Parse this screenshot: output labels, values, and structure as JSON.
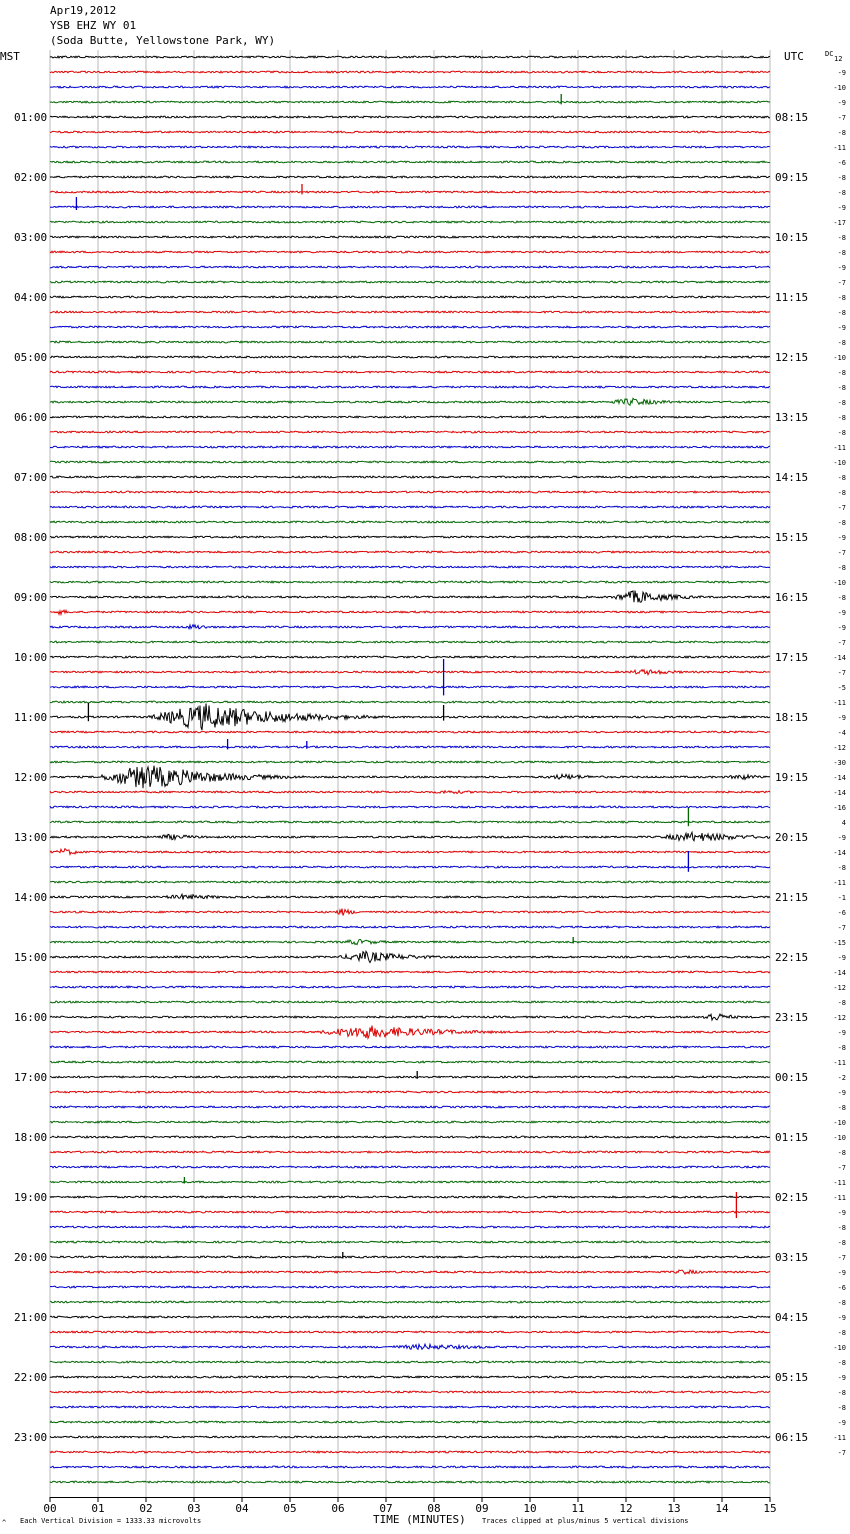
{
  "header": {
    "date": "Apr19,2012",
    "station": "YSB EHZ WY 01",
    "location": "(Soda Butte, Yellowstone Park, WY)"
  },
  "chart_data": {
    "type": "line",
    "left_tz": "MST",
    "right_tz": "UTC",
    "dc_label": "DC",
    "dc_first": "12",
    "xlabel": "TIME (MINUTES)",
    "xlim": [
      0,
      15
    ],
    "x_ticks": [
      "00",
      "01",
      "02",
      "03",
      "04",
      "05",
      "06",
      "07",
      "08",
      "09",
      "10",
      "11",
      "12",
      "13",
      "14",
      "15"
    ],
    "footer_left": "Each Vertical Division = 1333.33 microvolts",
    "footer_right": "Traces clipped at plus/minus 5 vertical divisions",
    "footer_mark": "^",
    "trace_colors": [
      "#000000",
      "#dd0000",
      "#0000cc",
      "#006600"
    ],
    "mst_labels": [
      "",
      "01:00",
      "02:00",
      "03:00",
      "04:00",
      "05:00",
      "06:00",
      "07:00",
      "08:00",
      "09:00",
      "10:00",
      "11:00",
      "12:00",
      "13:00",
      "14:00",
      "15:00",
      "16:00",
      "17:00",
      "18:00",
      "19:00",
      "20:00",
      "21:00",
      "22:00",
      "23:00"
    ],
    "utc_labels": [
      "",
      "08:15",
      "09:15",
      "10:15",
      "11:15",
      "12:15",
      "13:15",
      "14:15",
      "15:15",
      "16:15",
      "17:15",
      "18:15",
      "19:15",
      "20:15",
      "21:15",
      "22:15",
      "23:15",
      "00:15",
      "01:15",
      "02:15",
      "03:15",
      "04:15",
      "05:15",
      "06:15"
    ],
    "dc_offsets": [
      12,
      -9,
      -10,
      -9,
      -7,
      -8,
      -11,
      -6,
      -8,
      -8,
      -9,
      -17,
      -8,
      -8,
      -9,
      -7,
      -8,
      -8,
      -9,
      -8,
      -10,
      -8,
      -8,
      -8,
      -8,
      -8,
      -11,
      -10,
      -8,
      -8,
      -7,
      -8,
      -9,
      -7,
      -8,
      -10,
      -8,
      -9,
      -9,
      -7,
      -14,
      -7,
      -5,
      -11,
      -9,
      -4,
      -12,
      -30,
      -14,
      -14,
      -16,
      4,
      -9,
      -14,
      -8,
      -11,
      -1,
      -6,
      -7,
      -15,
      -9,
      -14,
      -12,
      -8,
      -12,
      -9,
      -8,
      -11,
      -2,
      -9,
      -8,
      -10,
      -10,
      -8,
      -7,
      -11,
      -11,
      -9,
      -8,
      -8,
      -7,
      -9,
      -6,
      -8,
      -9,
      -8,
      -10,
      -8,
      -9,
      -8,
      -8,
      -9,
      -11,
      -7
    ],
    "events": [
      {
        "trace": 3,
        "minute": 10.65,
        "amplitude": 8,
        "kind": "spike"
      },
      {
        "trace": 9,
        "minute": 5.25,
        "amplitude": 8,
        "kind": "spike"
      },
      {
        "trace": 10,
        "minute": 0.55,
        "amplitude": 10,
        "kind": "spike"
      },
      {
        "trace": 23,
        "minute": 12.1,
        "amplitude": 4,
        "kind": "burst",
        "width": 1.2
      },
      {
        "trace": 36,
        "minute": 12.2,
        "amplitude": 7,
        "kind": "burst",
        "width": 1.2
      },
      {
        "trace": 37,
        "minute": 0.2,
        "amplitude": 3,
        "kind": "burst",
        "width": 0.4
      },
      {
        "trace": 38,
        "minute": 3.0,
        "amplitude": 3,
        "kind": "burst",
        "width": 0.6
      },
      {
        "trace": 41,
        "minute": 12.4,
        "amplitude": 3,
        "kind": "burst",
        "width": 1.2
      },
      {
        "trace": 42,
        "minute": 8.2,
        "amplitude": 28,
        "kind": "spike"
      },
      {
        "trace": 44,
        "minute": 3.2,
        "amplitude": 14,
        "kind": "burst",
        "width": 2.5
      },
      {
        "trace": 44,
        "minute": 8.2,
        "amplitude": 12,
        "kind": "spike"
      },
      {
        "trace": 44,
        "minute": 0.8,
        "amplitude": 14,
        "kind": "spike"
      },
      {
        "trace": 46,
        "minute": 3.7,
        "amplitude": 8,
        "kind": "spike"
      },
      {
        "trace": 46,
        "minute": 5.35,
        "amplitude": 6,
        "kind": "spike"
      },
      {
        "trace": 48,
        "minute": 2.0,
        "amplitude": 13,
        "kind": "burst",
        "width": 2.2
      },
      {
        "trace": 48,
        "minute": 10.7,
        "amplitude": 3,
        "kind": "burst",
        "width": 1.2
      },
      {
        "trace": 48,
        "minute": 14.4,
        "amplitude": 3,
        "kind": "burst",
        "width": 0.8
      },
      {
        "trace": 49,
        "minute": 8.3,
        "amplitude": 2,
        "kind": "burst",
        "width": 1.2
      },
      {
        "trace": 51,
        "minute": 13.3,
        "amplitude": 14,
        "kind": "spike"
      },
      {
        "trace": 52,
        "minute": 2.5,
        "amplitude": 3,
        "kind": "burst",
        "width": 1.0
      },
      {
        "trace": 52,
        "minute": 13.4,
        "amplitude": 5,
        "kind": "burst",
        "width": 1.8
      },
      {
        "trace": 53,
        "minute": 0.3,
        "amplitude": 4,
        "kind": "burst",
        "width": 0.5
      },
      {
        "trace": 54,
        "minute": 13.3,
        "amplitude": 16,
        "kind": "spike"
      },
      {
        "trace": 56,
        "minute": 2.8,
        "amplitude": 3,
        "kind": "burst",
        "width": 1.3
      },
      {
        "trace": 57,
        "minute": 6.1,
        "amplitude": 4,
        "kind": "burst",
        "width": 0.4
      },
      {
        "trace": 59,
        "minute": 6.4,
        "amplitude": 3,
        "kind": "burst",
        "width": 1.0
      },
      {
        "trace": 59,
        "minute": 10.9,
        "amplitude": 5,
        "kind": "spike"
      },
      {
        "trace": 60,
        "minute": 6.6,
        "amplitude": 6,
        "kind": "burst",
        "width": 1.4
      },
      {
        "trace": 64,
        "minute": 13.8,
        "amplitude": 5,
        "kind": "burst",
        "width": 0.6
      },
      {
        "trace": 65,
        "minute": 6.6,
        "amplitude": 7,
        "kind": "burst",
        "width": 2.4
      },
      {
        "trace": 68,
        "minute": 7.65,
        "amplitude": 6,
        "kind": "spike"
      },
      {
        "trace": 75,
        "minute": 2.8,
        "amplitude": 5,
        "kind": "spike"
      },
      {
        "trace": 77,
        "minute": 14.3,
        "amplitude": 20,
        "kind": "spike"
      },
      {
        "trace": 80,
        "minute": 6.1,
        "amplitude": 5,
        "kind": "spike"
      },
      {
        "trace": 81,
        "minute": 13.2,
        "amplitude": 3,
        "kind": "burst",
        "width": 0.6
      },
      {
        "trace": 86,
        "minute": 7.8,
        "amplitude": 3,
        "kind": "burst",
        "width": 2.2
      }
    ]
  }
}
